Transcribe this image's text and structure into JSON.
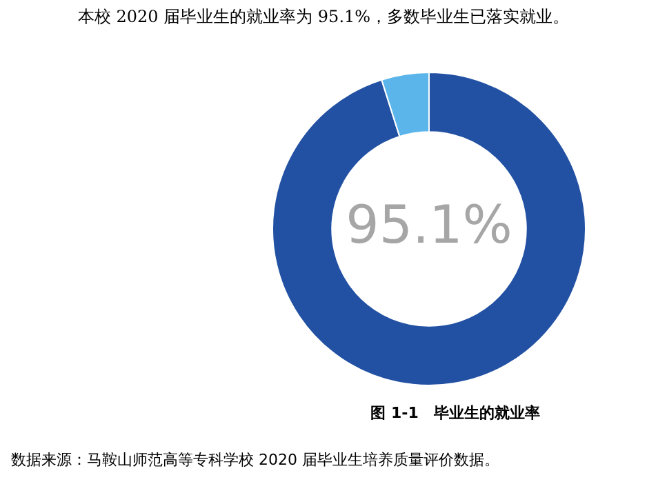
{
  "chart_data": {
    "type": "donut",
    "title": "本校 2020 届毕业生的就业率为 95.1%，多数毕业生已落实就业。",
    "categories": [
      null,
      null
    ],
    "values": [
      95.1,
      4.9
    ],
    "colors": [
      "#2251a3",
      "#5bb5ea"
    ],
    "value_labels": [
      "95.1%",
      null
    ],
    "legend": false,
    "annotations": [
      "图 1-1　毕业生的就业率",
      "数据来源：马鞍山师范高等专科学校 2020 届毕业生培养质量评价数据。"
    ]
  }
}
